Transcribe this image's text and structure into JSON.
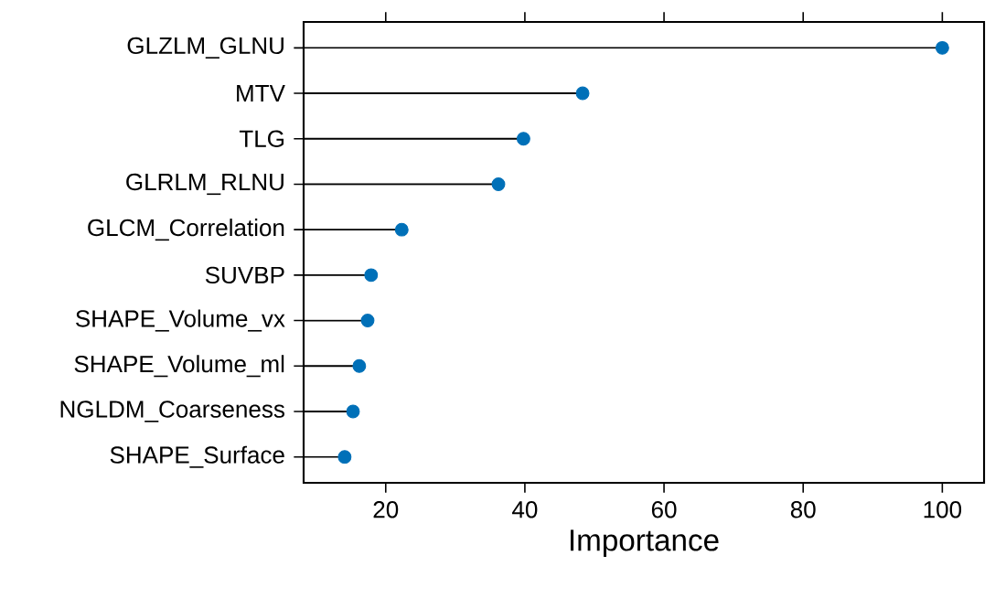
{
  "chart_data": {
    "type": "lollipop",
    "orientation": "horizontal",
    "xlabel": "Importance",
    "categories": [
      "GLZLM_GLNU",
      "MTV",
      "TLG",
      "GLRLM_RLNU",
      "GLCM_Correlation",
      "SUVBP",
      "SHAPE_Volume_vx",
      "SHAPE_Volume_ml",
      "NGLDM_Coarseness",
      "SHAPE_Surface"
    ],
    "values": [
      100,
      48.3,
      39.8,
      36.2,
      22.3,
      17.9,
      17.4,
      16.2,
      15.3,
      14.1
    ],
    "color": "#0070b8",
    "marker": "circle",
    "grid": false,
    "xlim": [
      8.2,
      106.0
    ],
    "xticks": [
      20,
      40,
      60,
      80,
      100
    ]
  }
}
